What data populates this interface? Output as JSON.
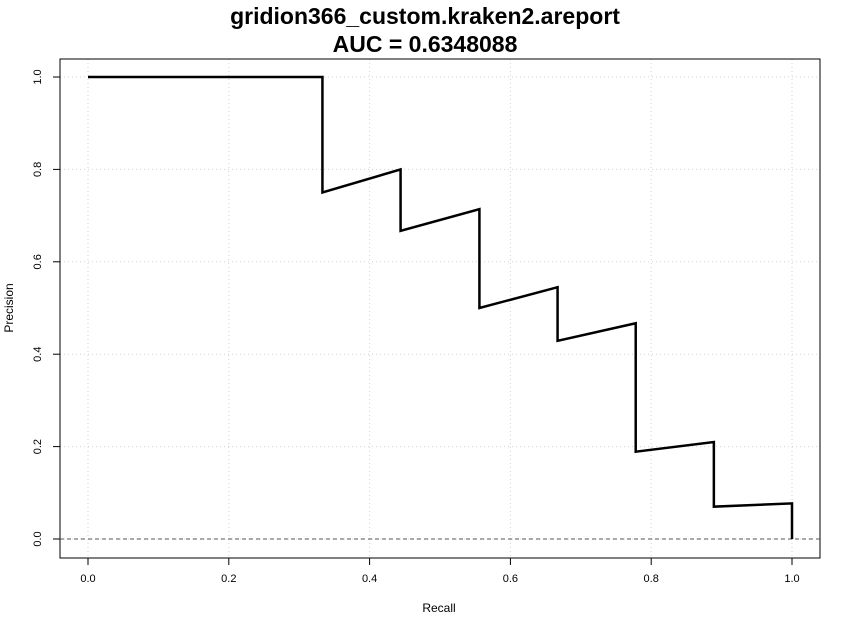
{
  "chart_data": {
    "type": "line",
    "title": "gridion366_custom.kraken2.areport",
    "subtitle": "AUC = 0.6348088",
    "xlabel": "Recall",
    "ylabel": "Precision",
    "xlim": [
      0.0,
      1.0
    ],
    "ylim": [
      0.0,
      1.0
    ],
    "xticks": [
      "0.0",
      "0.2",
      "0.4",
      "0.6",
      "0.8",
      "1.0"
    ],
    "yticks": [
      "0.0",
      "0.2",
      "0.4",
      "0.6",
      "0.8",
      "1.0"
    ],
    "grid": true,
    "baseline": 0.0,
    "series": [
      {
        "x": [
          0.0,
          0.333,
          0.333,
          0.444,
          0.444,
          0.556,
          0.556,
          0.667,
          0.667,
          0.778,
          0.778,
          0.889,
          0.889,
          1.0,
          1.0
        ],
        "y": [
          1.0,
          1.0,
          0.75,
          0.8,
          0.667,
          0.714,
          0.5,
          0.545,
          0.429,
          0.467,
          0.189,
          0.21,
          0.07,
          0.077,
          0.0
        ],
        "color": "#000000"
      }
    ]
  }
}
